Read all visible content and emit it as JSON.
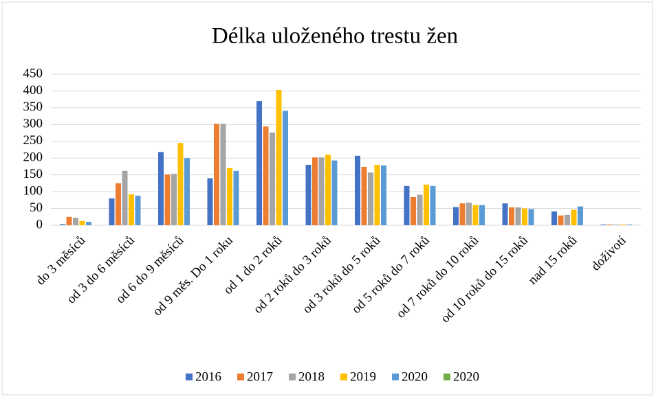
{
  "chart_data": {
    "type": "bar",
    "title": "Délka uloženého trestu žen",
    "categories": [
      "do 3 měsíců",
      "od 3 do 6 měsíců",
      "od 6 do 9 měsíců",
      "od 9 měs. Do 1 roku",
      "od 1 do 2 roků",
      "od 2 roků do 3 roků",
      "od 3 roků do 5 roků",
      "od 5 roků do 7 roků",
      "od 7 roků do 10 roků",
      "od 10 roků do 15 roků",
      "nad 15 roků",
      "doživotí"
    ],
    "series": [
      {
        "name": "2016",
        "color": "#4472c4",
        "values": [
          3,
          80,
          218,
          140,
          370,
          180,
          207,
          117,
          54,
          65,
          41,
          2
        ]
      },
      {
        "name": "2017",
        "color": "#ed7d31",
        "values": [
          25,
          125,
          151,
          302,
          294,
          202,
          174,
          84,
          65,
          53,
          29,
          2
        ]
      },
      {
        "name": "2018",
        "color": "#a5a5a5",
        "values": [
          22,
          162,
          153,
          302,
          276,
          202,
          157,
          91,
          67,
          53,
          31,
          2
        ]
      },
      {
        "name": "2019",
        "color": "#ffc000",
        "values": [
          13,
          92,
          245,
          170,
          403,
          210,
          180,
          121,
          60,
          50,
          46,
          2
        ]
      },
      {
        "name": "2020",
        "color": "#5b9bd5",
        "values": [
          10,
          88,
          200,
          162,
          341,
          193,
          178,
          117,
          60,
          48,
          56,
          2
        ]
      },
      {
        "name": "2020",
        "color": "#70ad47",
        "values": [
          0,
          0,
          0,
          0,
          0,
          0,
          0,
          0,
          0,
          0,
          0,
          0
        ]
      }
    ],
    "ylim": [
      0,
      450
    ],
    "yticks": [
      0,
      50,
      100,
      150,
      200,
      250,
      300,
      350,
      400,
      450
    ],
    "grid": true,
    "legend": "bottom"
  }
}
